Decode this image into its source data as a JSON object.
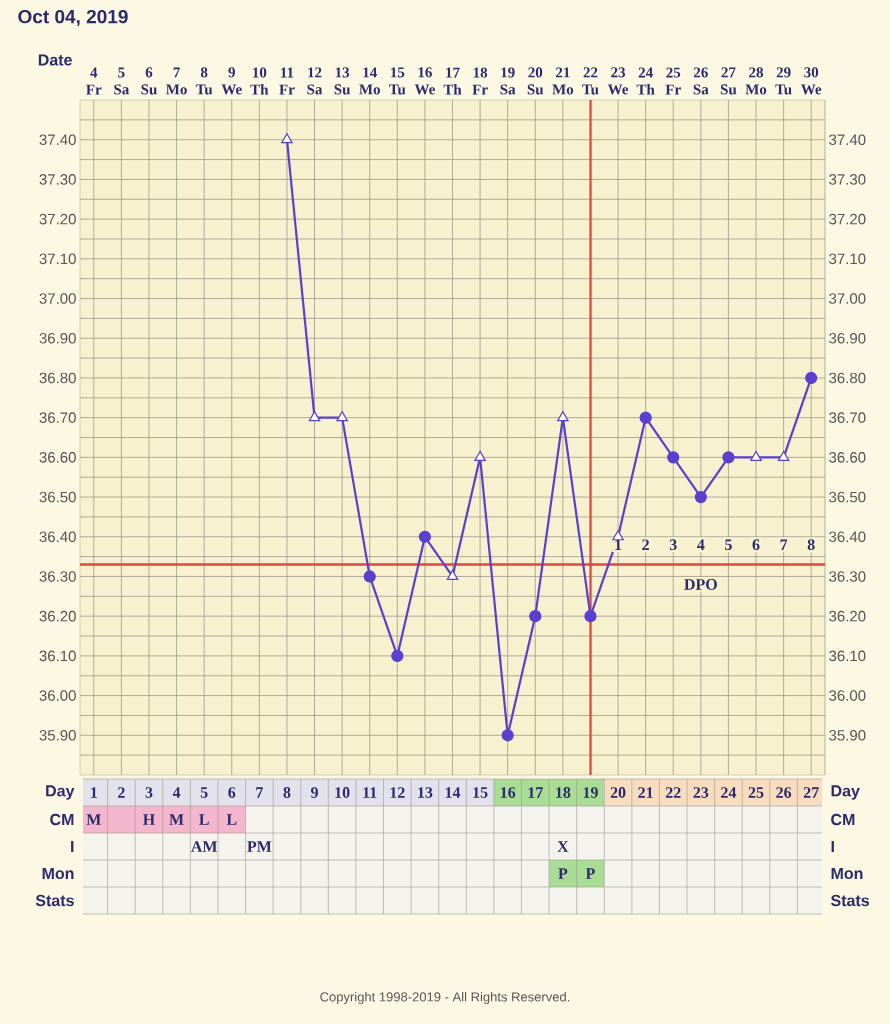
{
  "chart_data": {
    "type": "line",
    "title": "Oct 04, 2019",
    "xlabel": "Date",
    "categories": [
      "4 Fr",
      "5 Sa",
      "6 Su",
      "7 Mo",
      "8 Tu",
      "9 We",
      "10 Th",
      "11 Fr",
      "12 Sa",
      "13 Su",
      "14 Mo",
      "15 Tu",
      "16 We",
      "17 Th",
      "18 Fr",
      "19 Sa",
      "20 Su",
      "21 Mo",
      "22 Tu",
      "23 We",
      "24 Th",
      "25 Fr",
      "26 Sa",
      "27 Su",
      "28 Mo",
      "29 Tu",
      "30 We"
    ],
    "series": [
      {
        "color": "#5a3fd0",
        "marker": "none",
        "values": [
          null,
          null,
          null,
          null,
          null,
          null,
          null,
          37.4,
          36.7,
          36.7,
          36.3,
          36.1,
          36.4,
          36.3,
          36.6,
          35.9,
          36.2,
          36.7,
          36.2,
          36.4,
          36.7,
          36.6,
          36.5,
          36.6,
          36.6,
          36.6,
          36.8
        ]
      },
      {
        "type": "scatter",
        "color": "#5a3fd0",
        "marker": "triangle",
        "values": [
          null,
          null,
          null,
          null,
          null,
          null,
          null,
          37.4,
          36.7,
          36.7,
          null,
          null,
          null,
          36.3,
          36.6,
          null,
          null,
          36.7,
          null,
          36.4,
          null,
          null,
          null,
          null,
          36.6,
          36.6,
          null
        ]
      },
      {
        "type": "scatter",
        "color": "#5a3fd0",
        "marker": "circle",
        "values": [
          null,
          null,
          null,
          null,
          null,
          null,
          null,
          null,
          null,
          null,
          36.3,
          36.1,
          36.4,
          null,
          null,
          35.9,
          36.2,
          null,
          36.2,
          null,
          36.7,
          36.6,
          36.5,
          36.6,
          null,
          null,
          36.8
        ]
      }
    ],
    "ylim": [
      35.8,
      37.5
    ],
    "yticks": [
      {
        "value": 35.85,
        "label": null
      },
      {
        "value": 35.9,
        "label": "35.90"
      },
      {
        "value": 35.95,
        "label": null
      },
      {
        "value": 36.0,
        "label": "36.00"
      },
      {
        "value": 36.05,
        "label": null
      },
      {
        "value": 36.1,
        "label": "36.10"
      },
      {
        "value": 36.15,
        "label": null
      },
      {
        "value": 36.2,
        "label": "36.20"
      },
      {
        "value": 36.25,
        "label": null
      },
      {
        "value": 36.3,
        "label": "36.30"
      },
      {
        "value": 36.35,
        "label": null
      },
      {
        "value": 36.4,
        "label": "36.40"
      },
      {
        "value": 36.45,
        "label": null
      },
      {
        "value": 36.5,
        "label": "36.50"
      },
      {
        "value": 36.55,
        "label": null
      },
      {
        "value": 36.6,
        "label": "36.60"
      },
      {
        "value": 36.65,
        "label": null
      },
      {
        "value": 36.7,
        "label": "36.70"
      },
      {
        "value": 36.75,
        "label": null
      },
      {
        "value": 36.8,
        "label": "36.80"
      },
      {
        "value": 36.85,
        "label": null
      },
      {
        "value": 36.9,
        "label": "36.90"
      },
      {
        "value": 36.95,
        "label": null
      },
      {
        "value": 37.0,
        "label": "37.00"
      },
      {
        "value": 37.05,
        "label": null
      },
      {
        "value": 37.1,
        "label": "37.10"
      },
      {
        "value": 37.15,
        "label": null
      },
      {
        "value": 37.2,
        "label": "37.20"
      },
      {
        "value": 37.25,
        "label": null
      },
      {
        "value": 37.3,
        "label": "37.30"
      },
      {
        "value": 37.35,
        "label": null
      },
      {
        "value": 37.4,
        "label": "37.40"
      },
      {
        "value": 37.45,
        "label": null
      }
    ],
    "y2lim": [
      35.8,
      37.5
    ],
    "y2ticks": [
      {
        "value": 35.9,
        "label": "35.90"
      },
      {
        "value": 36.0,
        "label": "36.00"
      },
      {
        "value": 36.1,
        "label": "36.10"
      },
      {
        "value": 36.2,
        "label": "36.20"
      },
      {
        "value": 36.3,
        "label": "36.30"
      },
      {
        "value": 36.4,
        "label": "36.40"
      },
      {
        "value": 36.5,
        "label": "36.50"
      },
      {
        "value": 36.6,
        "label": "36.60"
      },
      {
        "value": 36.7,
        "label": "36.70"
      },
      {
        "value": 36.8,
        "label": "36.80"
      },
      {
        "value": 36.9,
        "label": "36.90"
      },
      {
        "value": 37.0,
        "label": "37.00"
      },
      {
        "value": 37.1,
        "label": "37.10"
      },
      {
        "value": 37.2,
        "label": "37.20"
      },
      {
        "value": 37.3,
        "label": "37.30"
      },
      {
        "value": 37.4,
        "label": "37.40"
      }
    ],
    "grid": true,
    "ref_lines": [
      {
        "axis": "y",
        "value": 36.33,
        "color": "#e0453f"
      },
      {
        "axis": "x",
        "value": "22 Tu",
        "color": "#e0453f"
      }
    ],
    "annotations": [
      {
        "text": "1",
        "x": "23 We",
        "y": 36.38
      },
      {
        "text": "2",
        "x": "24 Th",
        "y": 36.38
      },
      {
        "text": "3",
        "x": "25 Fr",
        "y": 36.38
      },
      {
        "text": "4",
        "x": "26 Sa",
        "y": 36.38
      },
      {
        "text": "5",
        "x": "27 Su",
        "y": 36.38
      },
      {
        "text": "6",
        "x": "28 Mo",
        "y": 36.38
      },
      {
        "text": "7",
        "x": "29 Tu",
        "y": 36.38
      },
      {
        "text": "8",
        "x": "30 We",
        "y": 36.38
      },
      {
        "text": "DPO",
        "x": "26 Sa",
        "y": 36.28
      },
      "Day",
      "CM",
      "I",
      "Mon",
      "Stats",
      "Day",
      "CM",
      "I",
      "Mon",
      "Stats",
      "1",
      "2",
      "3",
      "4",
      "5",
      "6",
      "7",
      "8",
      "9",
      "10",
      "11",
      "12",
      "13",
      "14",
      "15",
      "16",
      "17",
      "18",
      "19",
      "20",
      "21",
      "22",
      "23",
      "24",
      "25",
      "26",
      "27",
      "M",
      "H",
      "M",
      "L",
      "L",
      "AM",
      "PM",
      "X",
      "P",
      "P",
      "Copyright 1998-2019 - All Rights Reserved."
    ]
  }
}
